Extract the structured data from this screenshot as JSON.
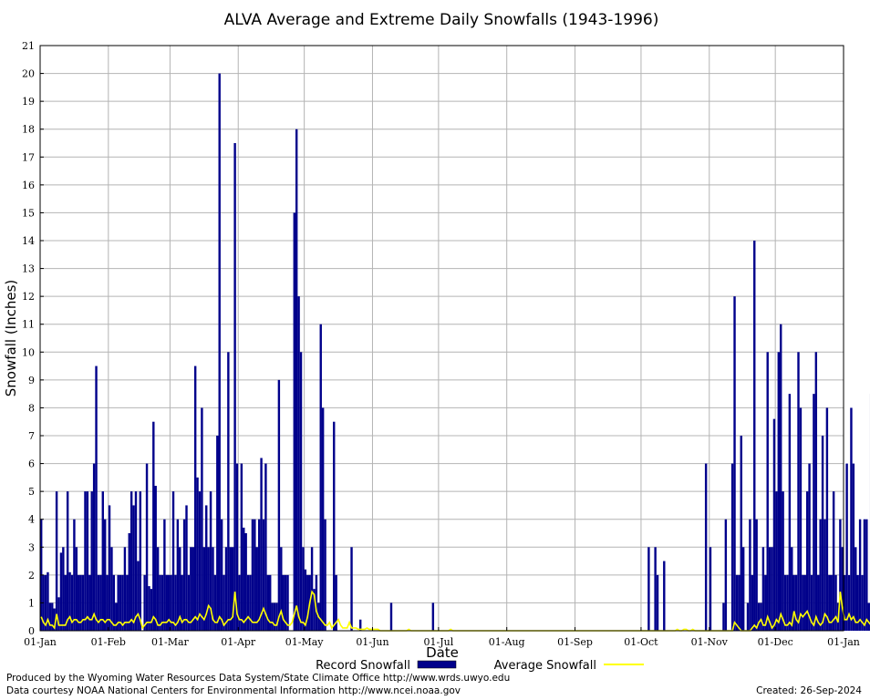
{
  "chart_data": {
    "type": "bar",
    "title": "ALVA Average and Extreme Daily Snowfalls (1943-1996)",
    "xlabel": "Date",
    "ylabel": "Snowfall (Inches)",
    "ylim": [
      0,
      21
    ],
    "xlim_days": [
      1,
      366
    ],
    "grid": true,
    "y_ticks": [
      "0",
      "1",
      "2",
      "3",
      "4",
      "5",
      "6",
      "7",
      "8",
      "9",
      "10",
      "11",
      "12",
      "13",
      "14",
      "15",
      "16",
      "17",
      "18",
      "19",
      "20",
      "21"
    ],
    "x_ticks": [
      {
        "label": "01-Jan",
        "day": 1
      },
      {
        "label": "01-Feb",
        "day": 32
      },
      {
        "label": "01-Mar",
        "day": 60
      },
      {
        "label": "01-Apr",
        "day": 91
      },
      {
        "label": "01-May",
        "day": 121
      },
      {
        "label": "01-Jun",
        "day": 152
      },
      {
        "label": "01-Jul",
        "day": 182
      },
      {
        "label": "01-Aug",
        "day": 213
      },
      {
        "label": "01-Sep",
        "day": 244
      },
      {
        "label": "01-Oct",
        "day": 274
      },
      {
        "label": "01-Nov",
        "day": 305
      },
      {
        "label": "01-Dec",
        "day": 335
      },
      {
        "label": "01-Jan",
        "day": 366
      }
    ],
    "legend": {
      "placement": "bottom",
      "items": [
        {
          "name": "Record Snowfall",
          "color": "#00008b",
          "style": "bar"
        },
        {
          "name": "Average Snowfall",
          "color": "#ffff00",
          "style": "line"
        }
      ]
    },
    "series": [
      {
        "name": "Record Snowfall",
        "color": "#00008b",
        "values": [
          4,
          2,
          2,
          2.1,
          1,
          1,
          0.8,
          5,
          1.2,
          2.8,
          3,
          2,
          5,
          2.1,
          2,
          4,
          3,
          2,
          2,
          2,
          5,
          5,
          2,
          5,
          6,
          9.5,
          2,
          2,
          5,
          4,
          2,
          4.5,
          3,
          2,
          1,
          2,
          2,
          2,
          3,
          2,
          3.5,
          5,
          4.5,
          5,
          2.5,
          5,
          0,
          2,
          6,
          1.6,
          1.5,
          7.5,
          5.2,
          3,
          2,
          2,
          4,
          2,
          2,
          2,
          5,
          2,
          4,
          3,
          2,
          4,
          4.5,
          2,
          3,
          3,
          9.5,
          5.5,
          5,
          8,
          3,
          4.5,
          3,
          5,
          3,
          2,
          7,
          20,
          4,
          2,
          3,
          10,
          3,
          3,
          17.5,
          6,
          2,
          6,
          3.7,
          3.5,
          2,
          2,
          4,
          4,
          3,
          4,
          6.2,
          4,
          6,
          2,
          2,
          1,
          1,
          1,
          9,
          3,
          2,
          2,
          2,
          0,
          0,
          15,
          18,
          12,
          10,
          3,
          2.2,
          2,
          2,
          3,
          1.5,
          2,
          1,
          11,
          8,
          4,
          0,
          0,
          0,
          7.5,
          2,
          0,
          0,
          0,
          0,
          0,
          0,
          3,
          0,
          0,
          0,
          0.4,
          0,
          0,
          0,
          0,
          0,
          0,
          0,
          0,
          0,
          0,
          0,
          0,
          0,
          1,
          0,
          0,
          0,
          0,
          0,
          0,
          0,
          0,
          0,
          0,
          0,
          0,
          0,
          0,
          0,
          0,
          0,
          0,
          1,
          0,
          0,
          0,
          0,
          0,
          0,
          0,
          0,
          0,
          0,
          0,
          0,
          0,
          0,
          0,
          0,
          0,
          0,
          0,
          0,
          0,
          0,
          0,
          0,
          0,
          0,
          0,
          0,
          0,
          0,
          0,
          0,
          0,
          0,
          0,
          0,
          0,
          0,
          0,
          0,
          0,
          0,
          0,
          0,
          0,
          0,
          0,
          0,
          0,
          0,
          0,
          0,
          0,
          0,
          0,
          0,
          0,
          0,
          0,
          0,
          0,
          0,
          0,
          0,
          0,
          0,
          0,
          0,
          0,
          0,
          0,
          0,
          0,
          0,
          0,
          0,
          0,
          0,
          0,
          0,
          0,
          0,
          0,
          0,
          0,
          0,
          0,
          0,
          0,
          0,
          0,
          0,
          0,
          0,
          0,
          0,
          0,
          3,
          0,
          0,
          3,
          2,
          0,
          0,
          2.5,
          0,
          0,
          0,
          0,
          0,
          0,
          0,
          0,
          0,
          0,
          0,
          0,
          0,
          0,
          0,
          0,
          0,
          0,
          6,
          0,
          3,
          0,
          0,
          0,
          0,
          0,
          1,
          4,
          0,
          0,
          6,
          12,
          2,
          2,
          7,
          3,
          0,
          1,
          4,
          2,
          14,
          4,
          1,
          1,
          3,
          2,
          10,
          3,
          3,
          7.6,
          5,
          10,
          11,
          5,
          2,
          2,
          8.5,
          3,
          2,
          2,
          10,
          8,
          2,
          2,
          5,
          6,
          2,
          8.5,
          10,
          2,
          4,
          7,
          4,
          8,
          2,
          2,
          5,
          2,
          1,
          4,
          3,
          2,
          6,
          2,
          8,
          6,
          3,
          2,
          4,
          2,
          4,
          4,
          1,
          8.5,
          2,
          0.8,
          5.2,
          4
        ]
      },
      {
        "name": "Average Snowfall",
        "color": "#ffff00",
        "values": [
          0.5,
          0.3,
          0.2,
          0.4,
          0.2,
          0.2,
          0.1,
          0.6,
          0.2,
          0.2,
          0.2,
          0.2,
          0.4,
          0.5,
          0.3,
          0.4,
          0.4,
          0.3,
          0.3,
          0.4,
          0.4,
          0.5,
          0.4,
          0.4,
          0.6,
          0.4,
          0.3,
          0.4,
          0.4,
          0.3,
          0.4,
          0.4,
          0.3,
          0.2,
          0.2,
          0.3,
          0.3,
          0.2,
          0.3,
          0.3,
          0.3,
          0.4,
          0.3,
          0.5,
          0.6,
          0.4,
          0.1,
          0.2,
          0.3,
          0.3,
          0.3,
          0.5,
          0.4,
          0.2,
          0.2,
          0.3,
          0.3,
          0.3,
          0.4,
          0.3,
          0.3,
          0.2,
          0.3,
          0.5,
          0.3,
          0.4,
          0.4,
          0.3,
          0.3,
          0.4,
          0.5,
          0.4,
          0.6,
          0.5,
          0.4,
          0.6,
          0.9,
          0.8,
          0.4,
          0.3,
          0.3,
          0.5,
          0.4,
          0.2,
          0.3,
          0.4,
          0.4,
          0.5,
          1.4,
          0.6,
          0.4,
          0.4,
          0.3,
          0.4,
          0.5,
          0.4,
          0.3,
          0.3,
          0.3,
          0.4,
          0.6,
          0.8,
          0.6,
          0.4,
          0.3,
          0.3,
          0.2,
          0.2,
          0.5,
          0.7,
          0.4,
          0.3,
          0.2,
          0.2,
          0.3,
          0.6,
          0.9,
          0.5,
          0.3,
          0.3,
          0.2,
          0.5,
          1.0,
          1.4,
          1.3,
          0.7,
          0.5,
          0.4,
          0.3,
          0.2,
          0.2,
          0.3,
          0.1,
          0.2,
          0.3,
          0.4,
          0.2,
          0.1,
          0.1,
          0.1,
          0.3,
          0.1,
          0.1,
          0.1,
          0.05,
          0.05,
          0.05,
          0.05,
          0.1,
          0.05,
          0.05,
          0.05,
          0.05,
          0.05,
          0,
          0,
          0,
          0,
          0,
          0,
          0,
          0,
          0,
          0,
          0,
          0,
          0,
          0.05,
          0,
          0,
          0,
          0,
          0,
          0,
          0,
          0,
          0,
          0,
          0,
          0,
          0,
          0,
          0,
          0,
          0,
          0,
          0.05,
          0,
          0,
          0,
          0,
          0,
          0,
          0,
          0,
          0,
          0,
          0,
          0,
          0,
          0,
          0,
          0,
          0,
          0,
          0,
          0,
          0,
          0,
          0,
          0,
          0,
          0,
          0,
          0,
          0,
          0,
          0,
          0,
          0,
          0,
          0,
          0,
          0,
          0,
          0,
          0,
          0,
          0,
          0,
          0,
          0,
          0,
          0,
          0,
          0,
          0,
          0,
          0,
          0,
          0,
          0,
          0,
          0,
          0,
          0,
          0,
          0,
          0,
          0,
          0,
          0,
          0,
          0,
          0,
          0,
          0,
          0,
          0,
          0,
          0,
          0,
          0,
          0,
          0,
          0,
          0,
          0,
          0,
          0,
          0,
          0,
          0,
          0,
          0,
          0,
          0,
          0,
          0,
          0,
          0,
          0,
          0,
          0,
          0,
          0,
          0,
          0,
          0,
          0.05,
          0,
          0,
          0.05,
          0.05,
          0,
          0,
          0.05,
          0,
          0,
          0,
          0,
          0,
          0,
          0,
          0,
          0,
          0,
          0,
          0,
          0,
          0,
          0,
          0,
          0,
          0,
          0.3,
          0.2,
          0.1,
          0,
          0,
          0,
          0,
          0,
          0.1,
          0.2,
          0.1,
          0.3,
          0.4,
          0.2,
          0.2,
          0.5,
          0.3,
          0.1,
          0.2,
          0.4,
          0.3,
          0.6,
          0.4,
          0.2,
          0.2,
          0.3,
          0.2,
          0.7,
          0.4,
          0.3,
          0.6,
          0.5,
          0.6,
          0.7,
          0.5,
          0.3,
          0.2,
          0.5,
          0.3,
          0.2,
          0.3,
          0.6,
          0.5,
          0.3,
          0.3,
          0.4,
          0.5,
          0.3,
          1.4,
          0.8,
          0.4,
          0.4,
          0.6,
          0.4,
          0.5,
          0.3,
          0.3,
          0.4,
          0.3,
          0.2,
          0.4,
          0.3,
          0.2,
          0.9,
          0.5,
          0.6,
          0.5,
          0.4,
          0.3,
          0.5,
          0.3,
          0.6,
          0.5,
          0.3,
          0.6,
          0.3,
          0.3,
          0.6,
          0.6
        ]
      }
    ]
  },
  "footer": {
    "produced_by": "Produced by the Wyoming Water Resources Data System/State Climate Office http://www.wrds.uwyo.edu",
    "data_courtesy": "Data courtesy NOAA National Centers for Environmental Information http://www.ncei.noaa.gov",
    "created": "Created:  26-Sep-2024"
  }
}
